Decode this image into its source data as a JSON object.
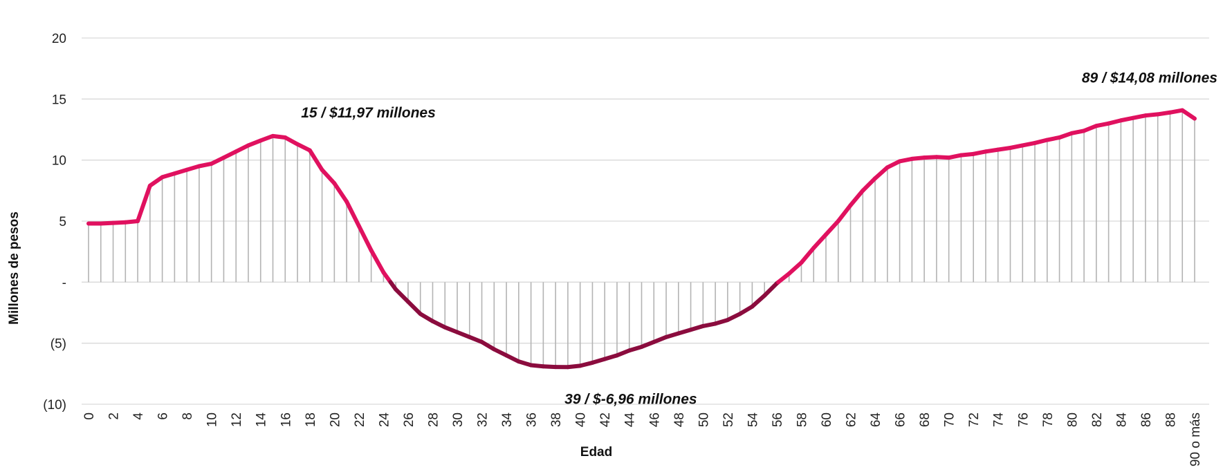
{
  "chart_data": {
    "type": "line",
    "xlabel": "Edad",
    "ylabel": "Millones de pesos",
    "ylim": [
      -10,
      20
    ],
    "y_ticks": [
      {
        "value": 20,
        "label": "20"
      },
      {
        "value": 15,
        "label": "15"
      },
      {
        "value": 10,
        "label": "10"
      },
      {
        "value": 5,
        "label": "5"
      },
      {
        "value": 0,
        "label": "-"
      },
      {
        "value": -5,
        "label": "(5)"
      },
      {
        "value": -10,
        "label": "(10)"
      }
    ],
    "x_tick_labels": [
      "0",
      "2",
      "4",
      "6",
      "8",
      "10",
      "12",
      "14",
      "16",
      "18",
      "20",
      "22",
      "24",
      "26",
      "28",
      "30",
      "32",
      "34",
      "36",
      "38",
      "40",
      "42",
      "44",
      "46",
      "48",
      "50",
      "52",
      "54",
      "56",
      "58",
      "60",
      "62",
      "64",
      "66",
      "68",
      "70",
      "72",
      "74",
      "76",
      "78",
      "80",
      "82",
      "84",
      "86",
      "88",
      "90 o más"
    ],
    "x_tick_indices": [
      0,
      2,
      4,
      6,
      8,
      10,
      12,
      14,
      16,
      18,
      20,
      22,
      24,
      26,
      28,
      30,
      32,
      34,
      36,
      38,
      40,
      42,
      44,
      46,
      48,
      50,
      52,
      54,
      56,
      58,
      60,
      62,
      64,
      66,
      68,
      70,
      72,
      74,
      76,
      78,
      80,
      82,
      84,
      86,
      88,
      90
    ],
    "x": [
      0,
      1,
      2,
      3,
      4,
      5,
      6,
      7,
      8,
      9,
      10,
      11,
      12,
      13,
      14,
      15,
      16,
      17,
      18,
      19,
      20,
      21,
      22,
      23,
      24,
      25,
      26,
      27,
      28,
      29,
      30,
      31,
      32,
      33,
      34,
      35,
      36,
      37,
      38,
      39,
      40,
      41,
      42,
      43,
      44,
      45,
      46,
      47,
      48,
      49,
      50,
      51,
      52,
      53,
      54,
      55,
      56,
      57,
      58,
      59,
      60,
      61,
      62,
      63,
      64,
      65,
      66,
      67,
      68,
      69,
      70,
      71,
      72,
      73,
      74,
      75,
      76,
      77,
      78,
      79,
      80,
      81,
      82,
      83,
      84,
      85,
      86,
      87,
      88,
      89,
      90
    ],
    "values": [
      4.8,
      4.8,
      4.85,
      4.9,
      5.0,
      7.9,
      8.6,
      8.9,
      9.2,
      9.5,
      9.7,
      10.2,
      10.7,
      11.2,
      11.6,
      11.97,
      11.85,
      11.3,
      10.8,
      9.2,
      8.1,
      6.6,
      4.6,
      2.6,
      0.8,
      -0.6,
      -1.6,
      -2.6,
      -3.2,
      -3.7,
      -4.1,
      -4.5,
      -4.9,
      -5.5,
      -6.0,
      -6.5,
      -6.8,
      -6.9,
      -6.95,
      -6.96,
      -6.85,
      -6.6,
      -6.3,
      -6.0,
      -5.6,
      -5.3,
      -4.9,
      -4.5,
      -4.2,
      -3.9,
      -3.6,
      -3.4,
      -3.1,
      -2.6,
      -2.0,
      -1.1,
      -0.1,
      0.7,
      1.6,
      2.8,
      3.9,
      5.0,
      6.3,
      7.5,
      8.5,
      9.4,
      9.9,
      10.1,
      10.2,
      10.25,
      10.2,
      10.4,
      10.5,
      10.7,
      10.85,
      11.0,
      11.2,
      11.4,
      11.65,
      11.85,
      12.2,
      12.4,
      12.8,
      13.0,
      13.25,
      13.45,
      13.65,
      13.75,
      13.9,
      14.08,
      13.4
    ],
    "series_color_positive": "#e0115f",
    "series_color_negative": "#8b0c3e",
    "drop_line_color": "#b3b3b3",
    "grid": true,
    "gridline_color": "#d9d9d9",
    "annotations": [
      {
        "x": 15,
        "value": 11.97,
        "text": "15 /  $11,97 millones",
        "position": "above"
      },
      {
        "x": 39,
        "value": -6.96,
        "text": "39 /  $-6,96 millones",
        "position": "below"
      },
      {
        "x": 89,
        "value": 14.08,
        "text": "89 /  $14,08 millones",
        "position": "above"
      }
    ],
    "legend": "none"
  }
}
